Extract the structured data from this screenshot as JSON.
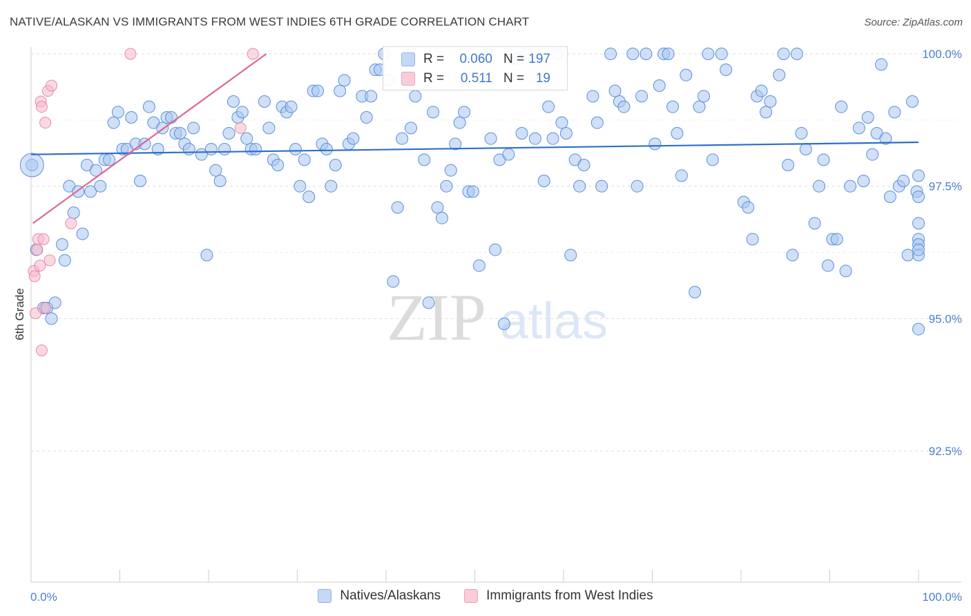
{
  "title": "NATIVE/ALASKAN VS IMMIGRANTS FROM WEST INDIES 6TH GRADE CORRELATION CHART",
  "source": "Source: ZipAtlas.com",
  "watermark": {
    "zip": "ZIP",
    "atlas": "atlas"
  },
  "colors": {
    "blue_fill": "#a9c6f0",
    "blue_stroke": "#5b8fd9",
    "blue_line": "#2d6ec9",
    "pink_fill": "#f7b9cc",
    "pink_stroke": "#e68aa8",
    "pink_line": "#e0648f",
    "tick_text": "#4a7fcc",
    "grid": "#dddddd"
  },
  "stats": [
    {
      "r_label": "R =",
      "r_value": "0.060",
      "n_label": "N =",
      "n_value": "197"
    },
    {
      "r_label": "R =",
      "r_value": "0.511",
      "n_label": "N =",
      "n_value": "19"
    }
  ],
  "legend": [
    {
      "label": "Natives/Alaskans"
    },
    {
      "label": "Immigrants from West Indies"
    }
  ],
  "chart_data": {
    "type": "scatter",
    "title": "NATIVE/ALASKAN VS IMMIGRANTS FROM WEST INDIES 6TH GRADE CORRELATION CHART",
    "xlabel": "",
    "ylabel": "6th Grade",
    "xlim": [
      0,
      100
    ],
    "ylim": [
      90.0,
      100.4
    ],
    "x_tick_labels": [
      "0.0%",
      "100.0%"
    ],
    "y_ticks": [
      92.5,
      95.0,
      97.5,
      100.0
    ],
    "y_tick_labels": [
      "92.5%",
      "95.0%",
      "97.5%",
      "100.0%"
    ],
    "grid": true,
    "legend_position": "bottom",
    "series": [
      {
        "name": "Natives/Alaskans",
        "trend": {
          "x": [
            0,
            100
          ],
          "y": [
            98.1,
            98.33
          ]
        },
        "points": [
          [
            0.1,
            97.9
          ],
          [
            0.6,
            96.3
          ],
          [
            1.4,
            95.2
          ],
          [
            1.8,
            95.2
          ],
          [
            2.3,
            95.0
          ],
          [
            2.7,
            95.3
          ],
          [
            3.5,
            96.4
          ],
          [
            3.8,
            96.1
          ],
          [
            4.3,
            97.5
          ],
          [
            4.8,
            97.0
          ],
          [
            5.3,
            97.4
          ],
          [
            5.8,
            96.6
          ],
          [
            6.3,
            97.9
          ],
          [
            6.7,
            97.4
          ],
          [
            7.3,
            97.8
          ],
          [
            7.8,
            97.5
          ],
          [
            8.3,
            98.0
          ],
          [
            8.8,
            98.0
          ],
          [
            9.3,
            98.7
          ],
          [
            9.8,
            98.9
          ],
          [
            10.3,
            98.2
          ],
          [
            10.8,
            98.2
          ],
          [
            11.3,
            98.8
          ],
          [
            11.8,
            98.3
          ],
          [
            12.3,
            97.6
          ],
          [
            12.8,
            98.3
          ],
          [
            13.3,
            99.0
          ],
          [
            13.8,
            98.7
          ],
          [
            14.3,
            98.2
          ],
          [
            14.8,
            98.6
          ],
          [
            15.3,
            98.8
          ],
          [
            15.8,
            98.8
          ],
          [
            16.3,
            98.5
          ],
          [
            16.8,
            98.5
          ],
          [
            17.3,
            98.3
          ],
          [
            17.8,
            98.2
          ],
          [
            18.3,
            98.6
          ],
          [
            19.2,
            98.1
          ],
          [
            19.8,
            96.2
          ],
          [
            20.3,
            98.2
          ],
          [
            20.8,
            97.8
          ],
          [
            21.3,
            97.6
          ],
          [
            21.8,
            98.2
          ],
          [
            22.3,
            98.5
          ],
          [
            22.8,
            99.1
          ],
          [
            23.3,
            98.8
          ],
          [
            23.8,
            98.9
          ],
          [
            24.3,
            98.4
          ],
          [
            24.8,
            98.2
          ],
          [
            25.3,
            98.2
          ],
          [
            26.3,
            99.1
          ],
          [
            26.8,
            98.6
          ],
          [
            27.3,
            98.0
          ],
          [
            27.8,
            97.9
          ],
          [
            28.3,
            99.0
          ],
          [
            28.8,
            98.9
          ],
          [
            29.3,
            99.0
          ],
          [
            29.8,
            98.2
          ],
          [
            30.3,
            97.5
          ],
          [
            30.8,
            98.0
          ],
          [
            31.3,
            97.3
          ],
          [
            31.8,
            99.3
          ],
          [
            32.3,
            99.3
          ],
          [
            32.8,
            98.3
          ],
          [
            33.3,
            98.2
          ],
          [
            33.8,
            97.5
          ],
          [
            34.3,
            97.9
          ],
          [
            34.8,
            99.3
          ],
          [
            35.3,
            99.5
          ],
          [
            35.8,
            98.3
          ],
          [
            36.3,
            98.4
          ],
          [
            37.3,
            99.2
          ],
          [
            37.8,
            98.8
          ],
          [
            38.3,
            99.2
          ],
          [
            38.8,
            99.7
          ],
          [
            39.3,
            99.7
          ],
          [
            39.8,
            100.0
          ],
          [
            40.3,
            99.5
          ],
          [
            40.8,
            95.7
          ],
          [
            41.3,
            97.1
          ],
          [
            41.8,
            98.4
          ],
          [
            42.3,
            99.7
          ],
          [
            42.8,
            98.6
          ],
          [
            43.3,
            99.2
          ],
          [
            44.3,
            98.0
          ],
          [
            44.8,
            95.3
          ],
          [
            45.3,
            98.9
          ],
          [
            45.8,
            97.1
          ],
          [
            46.3,
            96.9
          ],
          [
            46.8,
            97.5
          ],
          [
            47.3,
            97.8
          ],
          [
            47.8,
            98.3
          ],
          [
            48.3,
            98.7
          ],
          [
            48.8,
            98.9
          ],
          [
            49.3,
            97.4
          ],
          [
            49.8,
            97.4
          ],
          [
            50.5,
            96.0
          ],
          [
            51.3,
            100.0
          ],
          [
            51.8,
            98.4
          ],
          [
            52.3,
            96.3
          ],
          [
            52.8,
            98.0
          ],
          [
            53.3,
            94.9
          ],
          [
            53.8,
            98.1
          ],
          [
            54.8,
            99.9
          ],
          [
            55.3,
            98.5
          ],
          [
            55.8,
            100.0
          ],
          [
            56.8,
            98.4
          ],
          [
            57.8,
            97.6
          ],
          [
            58.3,
            99.0
          ],
          [
            58.8,
            98.4
          ],
          [
            59.3,
            100.0
          ],
          [
            59.8,
            98.7
          ],
          [
            60.3,
            98.5
          ],
          [
            60.8,
            96.2
          ],
          [
            61.3,
            98.0
          ],
          [
            61.8,
            97.5
          ],
          [
            62.3,
            97.9
          ],
          [
            63.3,
            99.2
          ],
          [
            63.8,
            98.7
          ],
          [
            64.3,
            97.5
          ],
          [
            65.3,
            100.0
          ],
          [
            65.8,
            99.3
          ],
          [
            66.3,
            99.1
          ],
          [
            66.8,
            99.0
          ],
          [
            67.8,
            100.0
          ],
          [
            68.3,
            97.5
          ],
          [
            68.8,
            99.2
          ],
          [
            69.3,
            100.0
          ],
          [
            70.3,
            98.3
          ],
          [
            70.8,
            99.4
          ],
          [
            71.3,
            100.0
          ],
          [
            71.8,
            100.0
          ],
          [
            72.3,
            99.0
          ],
          [
            72.8,
            98.5
          ],
          [
            73.3,
            97.7
          ],
          [
            73.8,
            99.6
          ],
          [
            74.8,
            95.5
          ],
          [
            75.3,
            99.0
          ],
          [
            75.8,
            99.2
          ],
          [
            76.3,
            100.0
          ],
          [
            76.8,
            98.0
          ],
          [
            77.8,
            100.0
          ],
          [
            78.3,
            99.7
          ],
          [
            80.3,
            97.2
          ],
          [
            80.8,
            97.1
          ],
          [
            81.3,
            96.5
          ],
          [
            81.8,
            99.2
          ],
          [
            82.3,
            99.3
          ],
          [
            82.8,
            98.9
          ],
          [
            83.3,
            99.1
          ],
          [
            84.3,
            99.6
          ],
          [
            84.8,
            100.0
          ],
          [
            85.3,
            97.9
          ],
          [
            85.8,
            96.2
          ],
          [
            86.3,
            100.0
          ],
          [
            86.8,
            98.5
          ],
          [
            87.3,
            98.2
          ],
          [
            88.3,
            96.8
          ],
          [
            88.8,
            97.5
          ],
          [
            89.3,
            98.0
          ],
          [
            89.8,
            96.0
          ],
          [
            90.3,
            96.5
          ],
          [
            90.8,
            96.5
          ],
          [
            91.3,
            99.0
          ],
          [
            91.8,
            95.9
          ],
          [
            92.3,
            97.5
          ],
          [
            93.3,
            98.6
          ],
          [
            93.8,
            97.6
          ],
          [
            94.3,
            98.8
          ],
          [
            94.8,
            98.1
          ],
          [
            95.3,
            98.5
          ],
          [
            95.8,
            99.8
          ],
          [
            96.3,
            98.4
          ],
          [
            96.8,
            97.3
          ],
          [
            97.3,
            98.9
          ],
          [
            97.8,
            97.5
          ],
          [
            98.3,
            97.6
          ],
          [
            98.8,
            96.2
          ],
          [
            99.3,
            99.1
          ],
          [
            99.8,
            97.4
          ],
          [
            100.3,
            96.8
          ],
          [
            100.8,
            96.5
          ],
          [
            101.3,
            96.4
          ],
          [
            101.8,
            96.2
          ],
          [
            102.3,
            96.3
          ],
          [
            102.8,
            97.3
          ],
          [
            103.3,
            94.8
          ],
          [
            103.8,
            97.7
          ]
        ]
      },
      {
        "name": "Immigrants from West Indies",
        "trend": {
          "x": [
            0.2,
            26.5
          ],
          "y": [
            96.8,
            100.0
          ]
        },
        "points": [
          [
            0.3,
            95.9
          ],
          [
            0.4,
            95.8
          ],
          [
            0.5,
            95.1
          ],
          [
            0.7,
            96.3
          ],
          [
            0.8,
            96.5
          ],
          [
            1.0,
            96.0
          ],
          [
            1.1,
            99.1
          ],
          [
            1.2,
            99.0
          ],
          [
            1.4,
            96.5
          ],
          [
            1.6,
            98.7
          ],
          [
            1.9,
            99.3
          ],
          [
            2.1,
            96.1
          ],
          [
            2.3,
            99.4
          ],
          [
            1.2,
            94.4
          ],
          [
            4.5,
            96.8
          ],
          [
            11.2,
            100.0
          ],
          [
            23.6,
            98.6
          ],
          [
            25.0,
            100.0
          ],
          [
            1.6,
            95.2
          ]
        ]
      }
    ]
  }
}
